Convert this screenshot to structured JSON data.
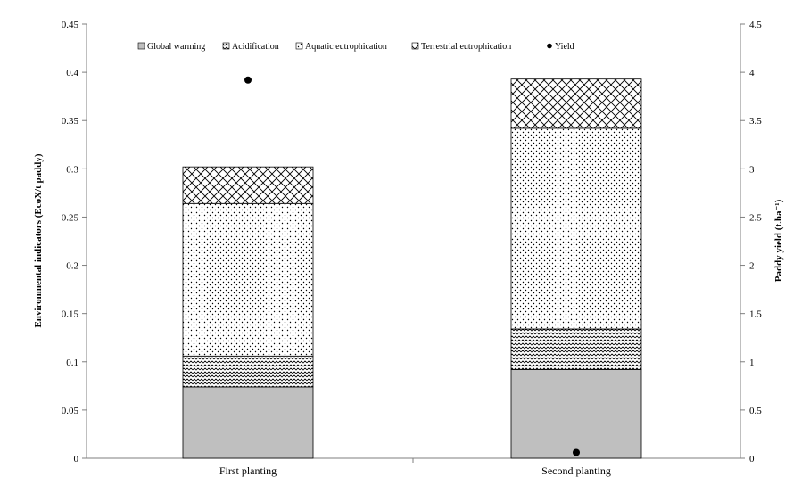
{
  "chart_data": {
    "type": "bar",
    "stacked": true,
    "categories": [
      "First planting",
      "Second planting"
    ],
    "series": [
      {
        "name": "Global warming",
        "values": [
          0.074,
          0.092
        ],
        "pattern": "solid",
        "color": "#bfbfbf"
      },
      {
        "name": "Acidification",
        "values": [
          0.032,
          0.042
        ],
        "pattern": "zigzag",
        "color": "#000000"
      },
      {
        "name": "Aquatic eutrophication",
        "values": [
          0.158,
          0.208
        ],
        "pattern": "dots",
        "color": "#000000"
      },
      {
        "name": "Terrestrial eutrophication",
        "values": [
          0.038,
          0.051
        ],
        "pattern": "crosshatch",
        "color": "#000000"
      }
    ],
    "secondary_series": {
      "name": "Yield",
      "type": "scatter",
      "values": [
        3.92,
        0.06
      ],
      "axis": "right",
      "color": "#000000"
    },
    "ylabel": "Environmental indicators (EcoX/t paddy)",
    "y2label": "Paddy yield (t.ha⁻¹)",
    "ylim": [
      0,
      0.45
    ],
    "y2lim": [
      0,
      4.5
    ],
    "yticks": [
      "0",
      "0.05",
      "0.1",
      "0.15",
      "0.2",
      "0.25",
      "0.3",
      "0.35",
      "0.4",
      "0.45"
    ],
    "y2ticks": [
      "0",
      "0.5",
      "1",
      "1.5",
      "2",
      "2.5",
      "3",
      "3.5",
      "4",
      "4.5"
    ],
    "legend_position": "top",
    "grid": false
  }
}
